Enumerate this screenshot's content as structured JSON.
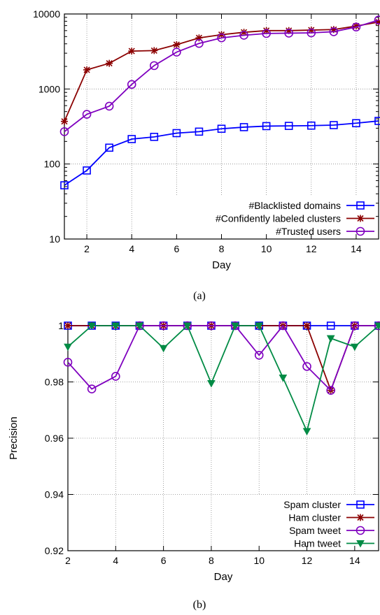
{
  "chart_data": [
    {
      "type": "line",
      "caption": "(a)",
      "xlabel": "Day",
      "ylabel": "",
      "yscale": "log",
      "xlim": [
        1,
        15
      ],
      "ylim": [
        10,
        10000
      ],
      "xticks": [
        2,
        4,
        6,
        8,
        10,
        12,
        14
      ],
      "xtick_labels": [
        "2",
        "4",
        "6",
        "8",
        "10",
        "12",
        "14"
      ],
      "yticks": [
        10,
        100,
        1000,
        10000
      ],
      "ytick_labels": [
        "10",
        "100",
        "1000",
        "10000"
      ],
      "grid": true,
      "legend_position": "bottom-right",
      "x": [
        1,
        2,
        3,
        4,
        5,
        6,
        7,
        8,
        9,
        10,
        11,
        12,
        13,
        14,
        15
      ],
      "series": [
        {
          "name": "#Blacklisted domains",
          "color": "#0000ff",
          "marker": "square",
          "values": [
            52,
            82,
            165,
            215,
            230,
            258,
            270,
            295,
            310,
            320,
            322,
            325,
            330,
            350,
            375
          ]
        },
        {
          "name": "#Confidently labeled clusters",
          "color": "#8b0000",
          "marker": "asterisk",
          "values": [
            370,
            1800,
            2200,
            3200,
            3250,
            3900,
            4800,
            5300,
            5700,
            6000,
            6000,
            6100,
            6200,
            6900,
            7800
          ]
        },
        {
          "name": "#Trusted users",
          "color": "#7f00bf",
          "marker": "circle",
          "values": [
            270,
            460,
            590,
            1150,
            2050,
            3100,
            4050,
            4800,
            5200,
            5500,
            5550,
            5600,
            5800,
            6700,
            8300
          ]
        }
      ]
    },
    {
      "type": "line",
      "caption": "(b)",
      "xlabel": "Day",
      "ylabel": "Precision",
      "yscale": "linear",
      "xlim": [
        2,
        15
      ],
      "ylim": [
        0.92,
        1.0
      ],
      "xticks": [
        2,
        4,
        6,
        8,
        10,
        12,
        14
      ],
      "xtick_labels": [
        "2",
        "4",
        "6",
        "8",
        "10",
        "12",
        "14"
      ],
      "yticks": [
        0.92,
        0.94,
        0.96,
        0.98,
        1.0
      ],
      "ytick_labels": [
        "0.92",
        "0.94",
        "0.96",
        "0.98",
        "1"
      ],
      "grid": true,
      "legend_position": "bottom-right",
      "x": [
        2,
        3,
        4,
        5,
        6,
        7,
        8,
        9,
        10,
        11,
        12,
        13,
        14,
        15
      ],
      "series": [
        {
          "name": "Spam cluster",
          "color": "#0000ff",
          "marker": "square",
          "values": [
            1,
            1,
            1,
            1,
            1,
            1,
            1,
            1,
            1,
            1,
            1,
            1,
            1,
            1
          ]
        },
        {
          "name": "Ham cluster",
          "color": "#8b0000",
          "marker": "asterisk",
          "values": [
            1,
            1,
            1,
            1,
            1,
            1,
            1,
            1,
            1,
            1,
            1,
            0.977,
            1,
            1
          ]
        },
        {
          "name": "Spam tweet",
          "color": "#7f00bf",
          "marker": "circle",
          "values": [
            0.987,
            0.9775,
            0.982,
            1,
            1,
            1,
            1,
            1,
            0.9895,
            1,
            0.9855,
            0.977,
            1,
            1
          ]
        },
        {
          "name": "Ham tweet",
          "color": "#008b45",
          "marker": "triangle-down",
          "values": [
            0.9925,
            1,
            1,
            1,
            0.992,
            1,
            0.9795,
            1,
            1,
            0.9815,
            0.9625,
            0.9955,
            0.9925,
            1
          ]
        }
      ]
    }
  ]
}
